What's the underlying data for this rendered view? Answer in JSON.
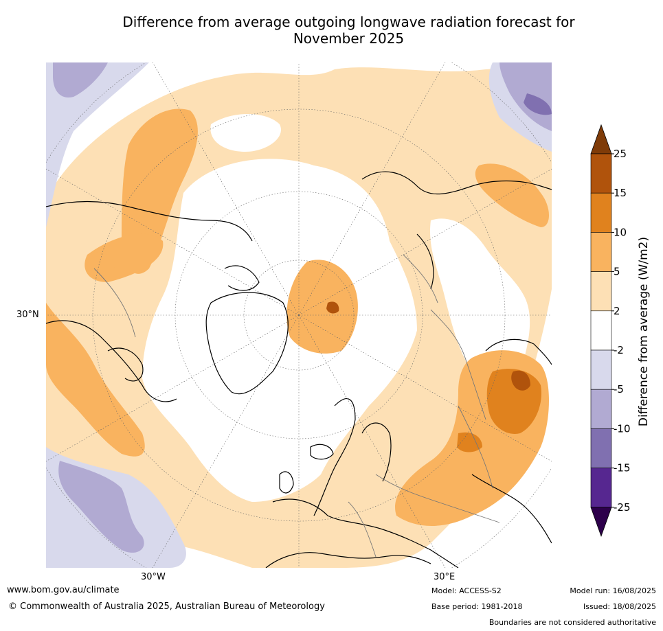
{
  "title_line1": "Difference from average outgoing longwave radiation forecast for",
  "title_line2": "November 2025",
  "map": {
    "lat_label": "30°N",
    "lon_labels": [
      "30°W",
      "30°E"
    ],
    "colors": {
      "land_outline": "#000000",
      "borders": "#777777",
      "graticule": "#666666"
    }
  },
  "legend": {
    "label": "Difference from average (W/m2)",
    "ticks": [
      "25",
      "15",
      "10",
      "5",
      "2",
      "-2",
      "-5",
      "-10",
      "-15",
      "-25"
    ],
    "colors": [
      "#b0530c",
      "#e0821e",
      "#f9b35f",
      "#fde0b5",
      "#ffffff",
      "#d8d9ec",
      "#b1aad2",
      "#8070b0",
      "#562790"
    ],
    "extend_high_color": "#7f3b08",
    "extend_low_color": "#2d004b"
  },
  "footer": {
    "url": "www.bom.gov.au/climate",
    "copyright": "© Commonwealth of Australia 2025, Australian Bureau of Meteorology",
    "model": "Model: ACCESS-S2",
    "base_period": "Base period: 1981-2018",
    "model_run": "Model run: 16/08/2025",
    "issued": "Issued: 18/08/2025",
    "disclaimer": "Boundaries are not considered authoritative"
  }
}
